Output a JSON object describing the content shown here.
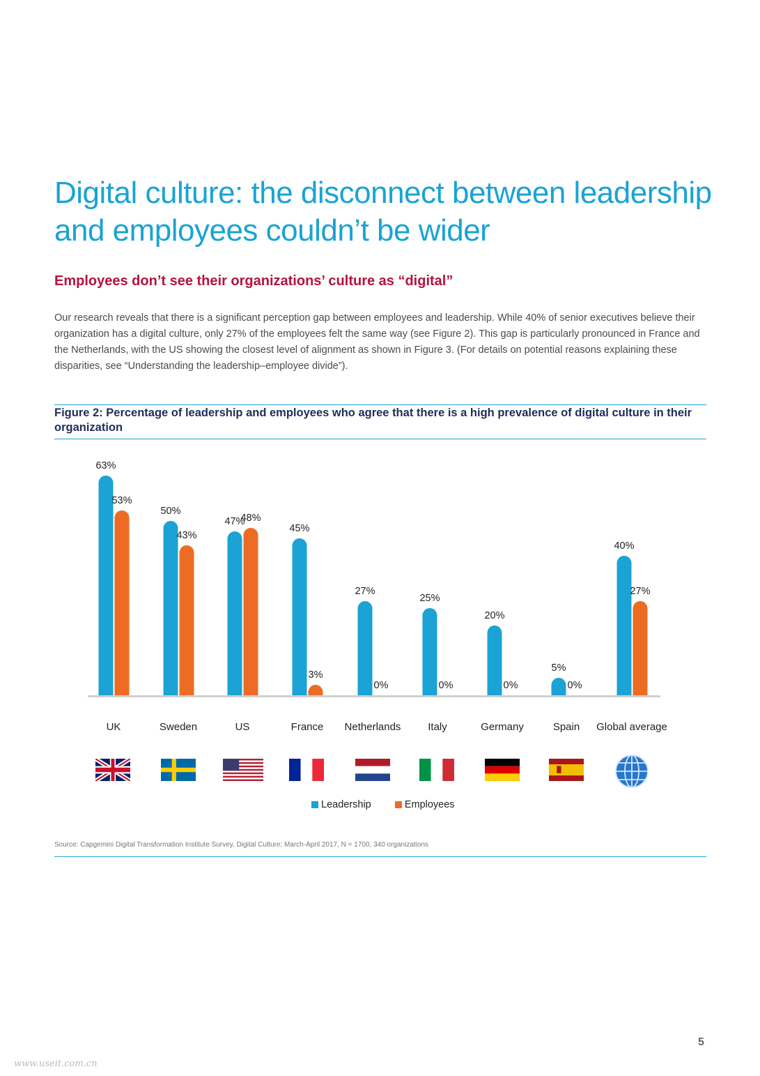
{
  "title": "Digital culture: the disconnect between leadership and employees couldn’t be wider",
  "subtitle": "Employees don’t see their organizations’ culture as “digital”",
  "body": "Our research reveals that there is a significant perception gap between employees and leadership. While 40% of senior executives believe their organization has a digital culture, only 27% of the employees felt the same way (see Figure 2). This gap is particularly pronounced in France and the Netherlands, with the US showing the closest level of alignment as shown in Figure 3. (For details on potential reasons explaining these disparities, see “Understanding the leadership–employee divide”).",
  "figure_caption": "Figure 2: Percentage of leadership and employees who agree that there is a high prevalence of  digital culture in their organization",
  "source": "Source: Capgemini Digital Transformation Institute Survey, Digital Culture; March-April 2017, N = 1700, 340 organizations",
  "page_number": "5",
  "watermark": "www.useit.com.cn",
  "legend": {
    "leadership": "Leadership",
    "employees": "Employees"
  },
  "colors": {
    "leadership": "#1aa3d4",
    "employees": "#ee6b23",
    "title": "#1aa3d4",
    "subtitle": "#b5123e"
  },
  "flags": [
    "uk-flag-icon",
    "sweden-flag-icon",
    "us-flag-icon",
    "france-flag-icon",
    "netherlands-flag-icon",
    "italy-flag-icon",
    "germany-flag-icon",
    "spain-flag-icon",
    "globe-icon"
  ],
  "chart_data": {
    "type": "bar",
    "categories": [
      "UK",
      "Sweden",
      "US",
      "France",
      "Netherlands",
      "Italy",
      "Germany",
      "Spain",
      "Global average"
    ],
    "series": [
      {
        "name": "Leadership",
        "values": [
          63,
          50,
          47,
          45,
          27,
          25,
          20,
          5,
          40
        ]
      },
      {
        "name": "Employees",
        "values": [
          53,
          43,
          48,
          3,
          0,
          0,
          0,
          0,
          27
        ]
      }
    ],
    "unit": "%",
    "ylim": [
      0,
      63
    ],
    "grid": false,
    "legend_position": "bottom"
  }
}
